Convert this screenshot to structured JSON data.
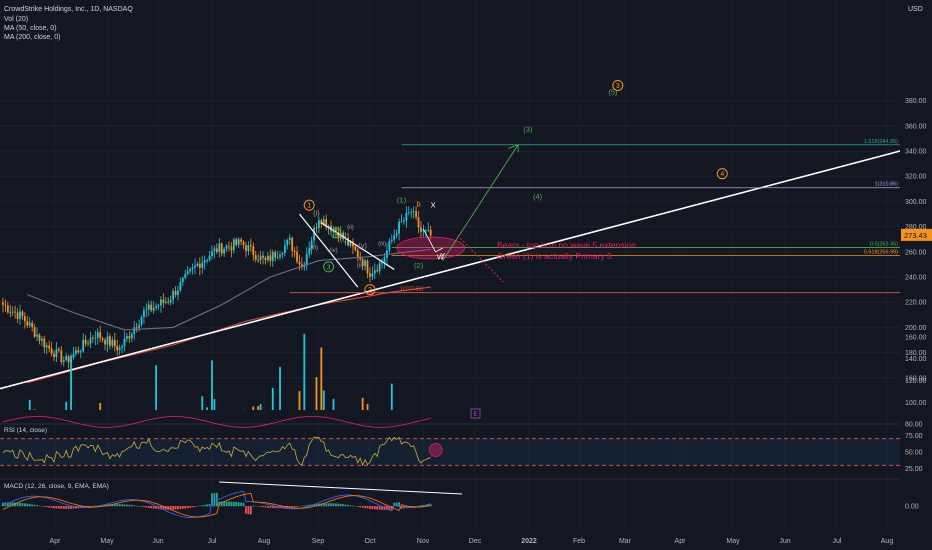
{
  "header": {
    "title": "CrowdStrike Holdings, Inc., 1D, NASDAQ",
    "vol": "Vol (20)",
    "ma50": "MA (50, close, 0)",
    "ma200": "MA (200, close, 0)",
    "currency": "USD"
  },
  "colors": {
    "background": "#131722",
    "up": "#26c6da",
    "down": "#f7931a",
    "ma50": "#6b6f8a",
    "ma200": "#e0483c",
    "trend": "#ffffff",
    "green": "#4caf50",
    "orange": "#f7931a",
    "annotation": "#e91e63",
    "price_badge": "#f7931a"
  },
  "chart_data": [
    {
      "type": "candlestick",
      "title": "CrowdStrike Holdings, Inc., 1D, NASDAQ",
      "ylim": [
        140,
        395
      ],
      "y_ticks": [
        160,
        180,
        200,
        220,
        240,
        260,
        280,
        300,
        320,
        340,
        360,
        380
      ],
      "x_ticks": [
        "Apr",
        "May",
        "Jun",
        "Jul",
        "Aug",
        "Sep",
        "Oct",
        "Nov",
        "Dec",
        "2022",
        "Feb",
        "Mar",
        "Apr",
        "May",
        "Jun",
        "Jul",
        "Aug"
      ],
      "last_price": "273.43",
      "anchors": [
        {
          "d": 0,
          "v": 218
        },
        {
          "d": 8,
          "v": 208
        },
        {
          "d": 18,
          "v": 185
        },
        {
          "d": 26,
          "v": 173
        },
        {
          "d": 38,
          "v": 195
        },
        {
          "d": 48,
          "v": 183
        },
        {
          "d": 58,
          "v": 212
        },
        {
          "d": 68,
          "v": 222
        },
        {
          "d": 80,
          "v": 250
        },
        {
          "d": 88,
          "v": 262
        },
        {
          "d": 98,
          "v": 267
        },
        {
          "d": 108,
          "v": 252
        },
        {
          "d": 118,
          "v": 268
        },
        {
          "d": 123,
          "v": 248
        },
        {
          "d": 130,
          "v": 288
        },
        {
          "d": 138,
          "v": 275
        },
        {
          "d": 146,
          "v": 258
        },
        {
          "d": 151,
          "v": 244
        },
        {
          "d": 156,
          "v": 252
        },
        {
          "d": 162,
          "v": 278
        },
        {
          "d": 168,
          "v": 292
        },
        {
          "d": 172,
          "v": 276
        },
        {
          "d": 176,
          "v": 273
        }
      ],
      "ma50": [
        [
          10,
          226
        ],
        [
          30,
          211
        ],
        [
          50,
          198
        ],
        [
          70,
          200
        ],
        [
          90,
          218
        ],
        [
          110,
          240
        ],
        [
          130,
          253
        ],
        [
          150,
          256
        ],
        [
          176,
          262
        ]
      ],
      "ma200": [
        [
          10,
          156
        ],
        [
          40,
          172
        ],
        [
          70,
          186
        ],
        [
          100,
          205
        ],
        [
          130,
          218
        ],
        [
          160,
          228
        ],
        [
          176,
          232
        ]
      ],
      "trendline": [
        [
          -4,
          150
        ],
        [
          382,
          340
        ]
      ],
      "fib_levels": [
        {
          "label": "1.618(344.95)",
          "value": 344.95,
          "color": "#26a69a"
        },
        {
          "label": "1(310.86)",
          "value": 310.86,
          "color": "#b39ddb"
        },
        {
          "label": "0.5(263.45)",
          "value": 263.45,
          "color": "#4caf50"
        },
        {
          "label": "0.618(256.99)",
          "value": 256.99,
          "color": "#f7931a"
        },
        {
          "label": "1(227.55)",
          "value": 227.55,
          "color": "#ef5350"
        }
      ],
      "wave_labels": [
        {
          "text": "(1)",
          "d": 164,
          "v": 299,
          "color": "#4caf50"
        },
        {
          "text": "(2)",
          "d": 171,
          "v": 247,
          "color": "#4caf50"
        },
        {
          "text": "(3)",
          "d": 216,
          "v": 355,
          "color": "#4caf50"
        },
        {
          "text": "(4)",
          "d": 220,
          "v": 302,
          "color": "#4caf50"
        },
        {
          "text": "(5)",
          "d": 251,
          "v": 385,
          "color": "#4caf50"
        },
        {
          "text": "X",
          "d": 177,
          "v": 295,
          "color": "#ffffff"
        },
        {
          "text": "b",
          "d": 171,
          "v": 296,
          "color": "#f7931a"
        },
        {
          "text": "W",
          "d": 180,
          "v": 254,
          "color": "#ffffff"
        },
        {
          "text": "Y",
          "d": 181,
          "v": 255,
          "color": "#ffffff"
        },
        {
          "text": "(i)",
          "d": 129,
          "v": 289,
          "color": "#9e9e9e"
        },
        {
          "text": "(ii)",
          "d": 143,
          "v": 278,
          "color": "#9e9e9e"
        },
        {
          "text": "(iii)",
          "d": 128,
          "v": 262,
          "color": "#9e9e9e"
        },
        {
          "text": "(iv)",
          "d": 136,
          "v": 260,
          "color": "#9e9e9e"
        },
        {
          "text": "(v)",
          "d": 148,
          "v": 263,
          "color": "#9e9e9e"
        },
        {
          "text": "(i)",
          "d": 140,
          "v": 268,
          "color": "#9e9e9e"
        },
        {
          "text": "(ii)",
          "d": 147,
          "v": 248,
          "color": "#9e9e9e"
        },
        {
          "text": "(iii)",
          "d": 156,
          "v": 265,
          "color": "#9e9e9e"
        }
      ],
      "circled_labels": [
        {
          "text": "1",
          "d": 126,
          "v": 297,
          "color": "#f7931a"
        },
        {
          "text": "2",
          "d": 151,
          "v": 230,
          "color": "#f7931a"
        },
        {
          "text": "3",
          "d": 253,
          "v": 392,
          "color": "#f7931a"
        },
        {
          "text": "4",
          "d": 296,
          "v": 322,
          "color": "#f7931a"
        },
        {
          "text": "5",
          "d": 137,
          "v": 275,
          "color": "#4caf50"
        },
        {
          "text": "3",
          "d": 134,
          "v": 248,
          "color": "#4caf50"
        }
      ],
      "annotation": [
        "Bears - top is in no wave 5 extension.",
        "Green (1) is actually Primary 5."
      ]
    },
    {
      "type": "bar",
      "title": "Vol (20)",
      "ylim": [
        70,
        180
      ],
      "y_ticks": [
        80,
        100,
        120,
        140,
        160
      ],
      "marker": "E"
    },
    {
      "type": "line",
      "title": "RSI (14, close)",
      "ylim": [
        20,
        80
      ],
      "y_ticks": [
        75.0,
        50.0,
        25.0
      ],
      "bands": [
        30,
        70
      ]
    },
    {
      "type": "line",
      "title": "MACD (12, 26, close, 9, EMA, EMA)",
      "ylim": [
        -15,
        15
      ],
      "y_ticks": [
        0.0
      ]
    }
  ],
  "panes": {
    "rsi_label": "RSI (14, close)",
    "macd_label": "MACD (12, 26, close, 9, EMA, EMA)"
  }
}
